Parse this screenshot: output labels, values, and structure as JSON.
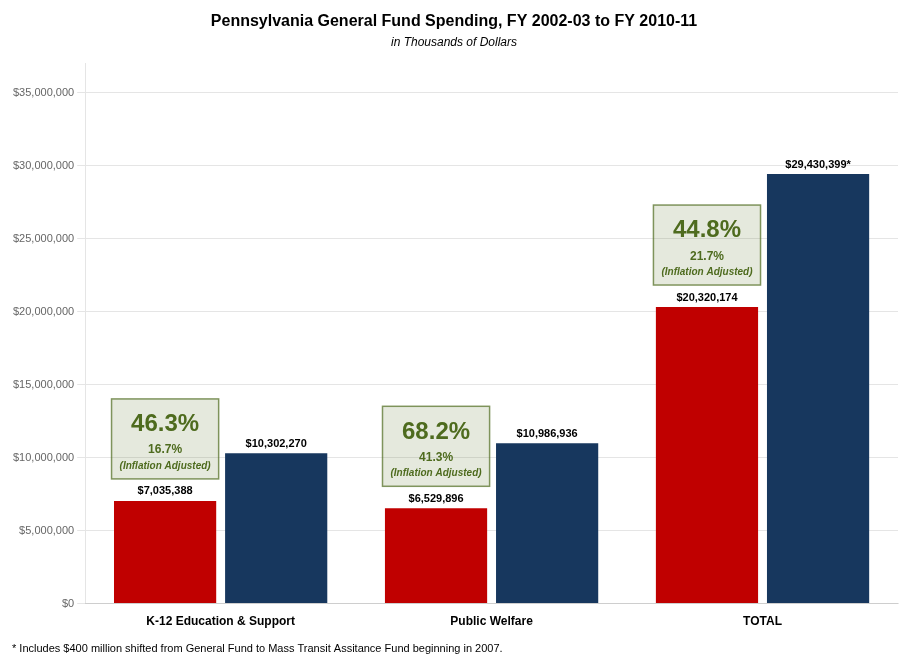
{
  "chart_data": {
    "type": "bar",
    "title": "Pennsylvania General Fund Spending, FY 2002-03 to FY 2010-11",
    "subtitle": "in Thousands of Dollars",
    "footnote": "* Includes $400 million shifted from General Fund to Mass Transit Assitance Fund beginning in 2007.",
    "categories": [
      "K-12 Education & Support",
      "Public Welfare",
      "TOTAL"
    ],
    "series": [
      {
        "color": "#C00000",
        "values": [
          7035388,
          6529896,
          20320174
        ],
        "value_labels": [
          "$7,035,388",
          "$6,529,896",
          "$20,320,174"
        ]
      },
      {
        "color": "#17375E",
        "values": [
          10302270,
          10986936,
          29430399
        ],
        "value_labels": [
          "$10,302,270",
          "$10,986,936",
          "$29,430,399*"
        ]
      }
    ],
    "annotations": [
      {
        "category": "K-12 Education & Support",
        "text": [
          "46.3%",
          "16.7%",
          "(Inflation Adjusted)"
        ],
        "color": "#4E6B1E"
      },
      {
        "category": "Public Welfare",
        "text": [
          "68.2%",
          "41.3%",
          "(Inflation Adjusted)"
        ],
        "color": "#4E6B1E"
      },
      {
        "category": "TOTAL",
        "text": [
          "44.8%",
          "21.7%",
          "(Inflation Adjusted)"
        ],
        "color": "#4E6B1E"
      }
    ],
    "ylim": [
      0,
      37000000
    ],
    "yticks": [
      {
        "value": 0,
        "label": "$0"
      },
      {
        "value": 5000000,
        "label": "$5,000,000"
      },
      {
        "value": 10000000,
        "label": "$10,000,000"
      },
      {
        "value": 15000000,
        "label": "$15,000,000"
      },
      {
        "value": 20000000,
        "label": "$20,000,000"
      },
      {
        "value": 25000000,
        "label": "$25,000,000"
      },
      {
        "value": 30000000,
        "label": "$30,000,000"
      },
      {
        "value": 35000000,
        "label": "$35,000,000"
      }
    ],
    "grid": true,
    "data_labels": true
  }
}
